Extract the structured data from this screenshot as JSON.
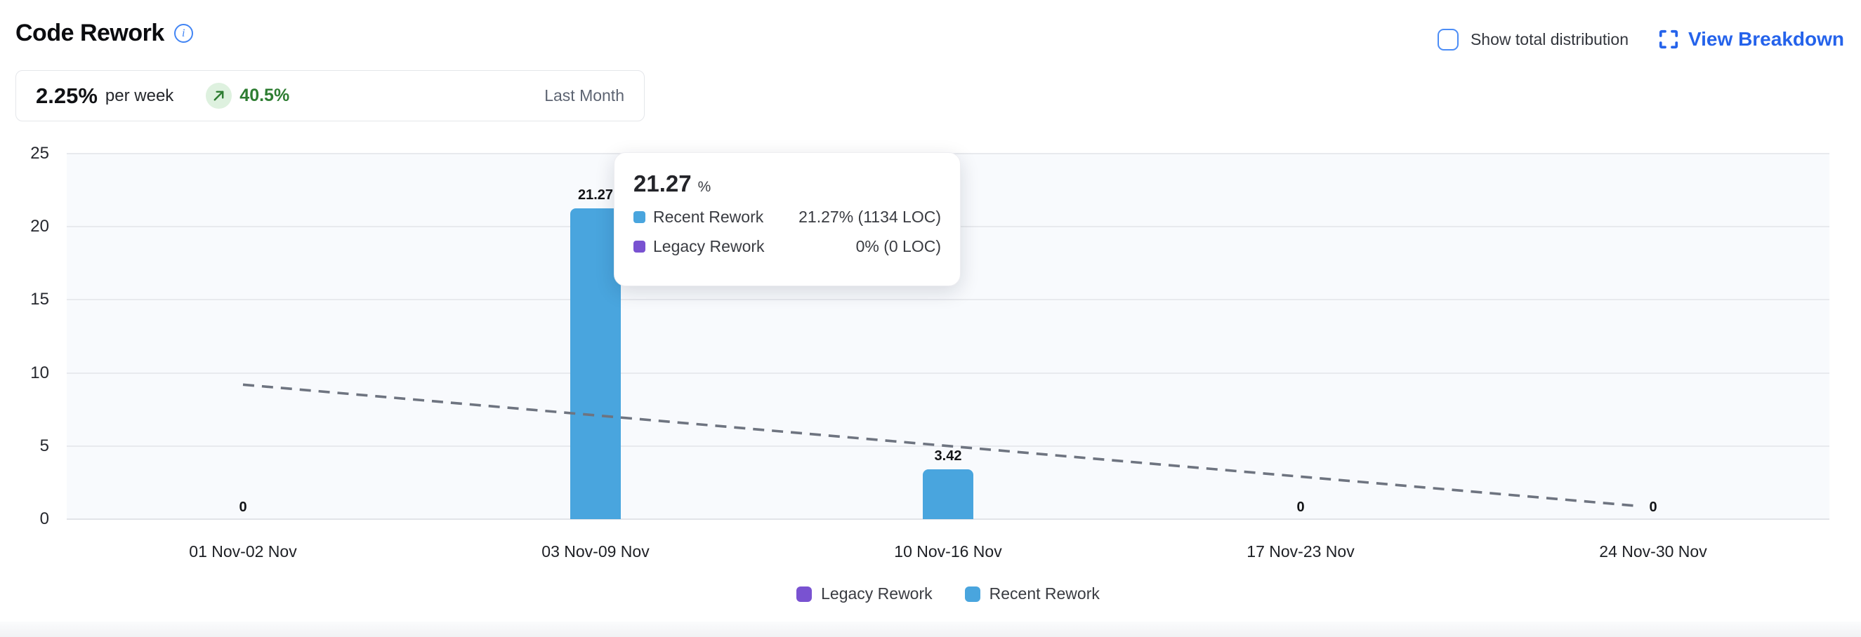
{
  "header": {
    "title": "Code Rework",
    "show_total_label": "Show total distribution",
    "view_breakdown_label": "View Breakdown"
  },
  "summary": {
    "value": "2.25%",
    "unit": "per week",
    "delta": "40.5%",
    "period": "Last Month"
  },
  "tooltip": {
    "title_value": "21.27",
    "title_unit": "%",
    "rows": [
      {
        "label": "Recent Rework",
        "value": "21.27% (1134 LOC)",
        "color": "#49a5de"
      },
      {
        "label": "Legacy Rework",
        "value": "0% (0 LOC)",
        "color": "#7952d1"
      }
    ]
  },
  "legend": [
    {
      "label": "Legacy Rework",
      "color": "#7952d1"
    },
    {
      "label": "Recent Rework",
      "color": "#49a5de"
    }
  ],
  "colors": {
    "accent_blue": "#2563eb",
    "checkbox_border": "#4c8df6",
    "positive_green": "#2e7d32",
    "badge_green_bg": "#def1df",
    "recent_rework": "#49a5de",
    "legacy_rework": "#7952d1",
    "plot_background": "#f8fafd",
    "gridline": "#e8eaee",
    "trend_line": "#6e7480"
  },
  "chart_data": {
    "type": "bar",
    "title": "Code Rework",
    "categories": [
      "01 Nov-02 Nov",
      "03 Nov-09 Nov",
      "10 Nov-16 Nov",
      "17 Nov-23 Nov",
      "24 Nov-30 Nov"
    ],
    "series": [
      {
        "name": "Legacy Rework",
        "color": "#7952d1",
        "values": [
          0,
          0,
          0,
          0,
          0
        ]
      },
      {
        "name": "Recent Rework",
        "color": "#49a5de",
        "values": [
          0,
          21.27,
          3.42,
          0,
          0
        ]
      }
    ],
    "bar_labels": [
      "0",
      "21.27",
      "3.42",
      "0",
      "0"
    ],
    "trend_line": {
      "style": "dashed",
      "color": "#6e7480",
      "points": [
        [
          0,
          9.2
        ],
        [
          4,
          0.9
        ]
      ]
    },
    "y_ticks": [
      0,
      5,
      10,
      15,
      20,
      25
    ],
    "ylim": [
      0,
      25
    ],
    "xlabel": "",
    "ylabel": "",
    "grid": true,
    "legend_position": "bottom"
  }
}
